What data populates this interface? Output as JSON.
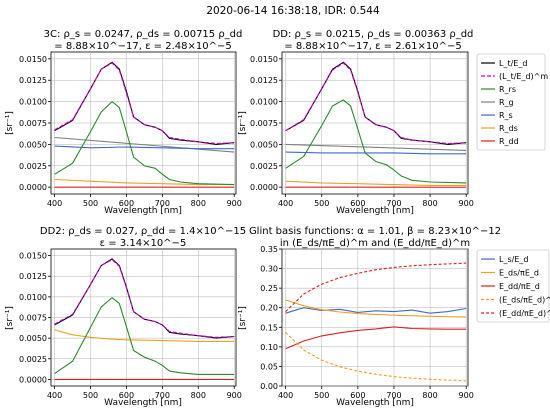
{
  "suptitle": "2020-06-14 16:38:18,  IDR: 0.544",
  "legend_top": [
    "L_t/E_d",
    "(L_t/E_d)^m",
    "R_rs",
    "R_g",
    "R_s",
    "R_ds",
    "R_dd"
  ],
  "legend_bottom": [
    "L_s/E_d",
    "E_ds/πE_d",
    "E_dd/πE_d",
    "(E_ds/πE_d)^m",
    "(E_dd/πE_d)^m"
  ],
  "colors": {
    "lt": "#000000",
    "ltm": "#cc00cc",
    "rrs": "#2a8a2a",
    "rg": "#7f7f7f",
    "rs": "#4169c8",
    "rds": "#f0a020",
    "rdd": "#e02020",
    "ls": "#4169c8",
    "eds": "#f0a020",
    "edd": "#e02020"
  },
  "chart_data": [
    {
      "type": "line",
      "title_lines": [
        "3C: ρ_s = 0.0247, ρ_ds = 0.00715 ρ_dd",
        "= 8.88×10^−17, ε = 2.48×10^−5"
      ],
      "xlabel": "Wavelength [nm]",
      "ylabel": "[sr⁻¹]",
      "xlim": [
        390,
        905
      ],
      "ylim": [
        -0.0008,
        0.0158
      ],
      "xticks": [
        400,
        500,
        600,
        700,
        800,
        900
      ],
      "yticks": [
        0.0,
        0.0025,
        0.005,
        0.0075,
        0.01,
        0.0125,
        0.015
      ],
      "ytick_labels": [
        "0.0000",
        "0.0025",
        "0.0050",
        "0.0075",
        "0.0100",
        "0.0125",
        "0.0150"
      ],
      "series": [
        {
          "key": "rg",
          "x": [
            400,
            900
          ],
          "y": [
            0.0058,
            0.0041
          ]
        },
        {
          "key": "rs",
          "x": [
            400,
            500,
            600,
            700,
            800,
            900
          ],
          "y": [
            0.0048,
            0.0046,
            0.0047,
            0.0046,
            0.0045,
            0.0045
          ]
        },
        {
          "key": "rds",
          "x": [
            400,
            500,
            600,
            700,
            800,
            900
          ],
          "y": [
            0.0009,
            0.0007,
            0.0005,
            0.0004,
            0.0003,
            0.0003
          ]
        },
        {
          "key": "rdd",
          "x": [
            400,
            900
          ],
          "y": [
            0.0,
            0.0
          ]
        },
        {
          "key": "rrs",
          "x": [
            400,
            450,
            500,
            530,
            560,
            580,
            600,
            620,
            650,
            680,
            700,
            720,
            750,
            800,
            900
          ],
          "y": [
            0.0015,
            0.0028,
            0.0065,
            0.0088,
            0.01,
            0.0093,
            0.0065,
            0.0035,
            0.0025,
            0.0022,
            0.0015,
            0.0009,
            0.0006,
            0.0004,
            0.0003
          ]
        },
        {
          "key": "lt",
          "x": [
            400,
            450,
            500,
            530,
            560,
            580,
            600,
            620,
            650,
            680,
            700,
            720,
            750,
            800,
            850,
            900
          ],
          "y": [
            0.0066,
            0.0078,
            0.0115,
            0.0138,
            0.0146,
            0.0138,
            0.0112,
            0.0082,
            0.0073,
            0.007,
            0.0066,
            0.0057,
            0.0055,
            0.0053,
            0.005,
            0.0052
          ]
        },
        {
          "key": "ltm",
          "x": [
            400,
            450,
            500,
            530,
            560,
            580,
            600,
            620,
            650,
            680,
            700,
            720,
            750,
            800,
            850,
            900
          ],
          "y": [
            0.0067,
            0.0079,
            0.0115,
            0.0138,
            0.0145,
            0.0137,
            0.011,
            0.0082,
            0.0073,
            0.007,
            0.0066,
            0.0058,
            0.0056,
            0.0053,
            0.0051,
            0.0052
          ]
        }
      ]
    },
    {
      "type": "line",
      "title_lines": [
        "DD: ρ_s = 0.0215, ρ_ds = 0.00363 ρ_dd",
        "= 8.88×10^−17, ε = 2.61×10^−5"
      ],
      "xlabel": "Wavelength [nm]",
      "ylabel": "[sr⁻¹]",
      "xlim": [
        390,
        905
      ],
      "ylim": [
        -0.0008,
        0.0158
      ],
      "xticks": [
        400,
        500,
        600,
        700,
        800,
        900
      ],
      "yticks": [
        0.0,
        0.0025,
        0.005,
        0.0075,
        0.01,
        0.0125,
        0.015
      ],
      "ytick_labels": [
        "0.0000",
        "0.0025",
        "0.0050",
        "0.0075",
        "0.0100",
        "0.0125",
        "0.0150"
      ],
      "series": [
        {
          "key": "rg",
          "x": [
            400,
            900
          ],
          "y": [
            0.005,
            0.0043
          ]
        },
        {
          "key": "rs",
          "x": [
            400,
            500,
            600,
            700,
            800,
            900
          ],
          "y": [
            0.0041,
            0.004,
            0.004,
            0.004,
            0.0039,
            0.0039
          ]
        },
        {
          "key": "rds",
          "x": [
            400,
            500,
            600,
            700,
            800,
            900
          ],
          "y": [
            0.0007,
            0.0005,
            0.0004,
            0.0003,
            0.0002,
            0.0002
          ]
        },
        {
          "key": "rdd",
          "x": [
            400,
            900
          ],
          "y": [
            0.0,
            0.0
          ]
        },
        {
          "key": "rrs",
          "x": [
            400,
            450,
            500,
            530,
            560,
            580,
            600,
            620,
            650,
            680,
            700,
            720,
            750,
            800,
            900
          ],
          "y": [
            0.0022,
            0.0036,
            0.0072,
            0.0095,
            0.0102,
            0.0095,
            0.0068,
            0.004,
            0.003,
            0.0026,
            0.002,
            0.0013,
            0.0008,
            0.0006,
            0.0005
          ]
        },
        {
          "key": "lt",
          "x": [
            400,
            450,
            500,
            530,
            560,
            580,
            600,
            620,
            650,
            680,
            700,
            720,
            750,
            800,
            850,
            900
          ],
          "y": [
            0.0066,
            0.0078,
            0.0115,
            0.0138,
            0.0146,
            0.0138,
            0.0112,
            0.0082,
            0.0073,
            0.007,
            0.0066,
            0.0057,
            0.0055,
            0.0053,
            0.005,
            0.0052
          ]
        },
        {
          "key": "ltm",
          "x": [
            400,
            450,
            500,
            530,
            560,
            580,
            600,
            620,
            650,
            680,
            700,
            720,
            750,
            800,
            850,
            900
          ],
          "y": [
            0.0066,
            0.0079,
            0.0115,
            0.0137,
            0.0145,
            0.0137,
            0.0111,
            0.0082,
            0.0073,
            0.007,
            0.0066,
            0.0058,
            0.0055,
            0.0053,
            0.0051,
            0.0052
          ]
        }
      ]
    },
    {
      "type": "line",
      "title_lines": [
        "DD2: ρ_ds = 0.027, ρ_dd = 1.4×10^−15",
        "ε = 3.14×10^−5"
      ],
      "xlabel": "Wavelength [nm]",
      "ylabel": "[sr⁻¹]",
      "xlim": [
        390,
        905
      ],
      "ylim": [
        -0.0008,
        0.0158
      ],
      "xticks": [
        400,
        500,
        600,
        700,
        800,
        900
      ],
      "yticks": [
        0.0,
        0.0025,
        0.005,
        0.0075,
        0.01,
        0.0125,
        0.015
      ],
      "ytick_labels": [
        "0.0000",
        "0.0025",
        "0.0050",
        "0.0075",
        "0.0100",
        "0.0125",
        "0.0150"
      ],
      "series": [
        {
          "key": "rds",
          "x": [
            400,
            450,
            500,
            550,
            600,
            700,
            800,
            900
          ],
          "y": [
            0.006,
            0.0054,
            0.0051,
            0.0049,
            0.0048,
            0.0047,
            0.0046,
            0.0046
          ]
        },
        {
          "key": "rdd",
          "x": [
            400,
            900
          ],
          "y": [
            0.0,
            0.0
          ]
        },
        {
          "key": "rrs",
          "x": [
            400,
            450,
            500,
            530,
            560,
            580,
            600,
            620,
            650,
            680,
            700,
            720,
            750,
            800,
            900
          ],
          "y": [
            0.0007,
            0.0022,
            0.0063,
            0.0088,
            0.0099,
            0.0092,
            0.0064,
            0.0035,
            0.0027,
            0.0022,
            0.0017,
            0.001,
            0.0008,
            0.0006,
            0.0006
          ]
        },
        {
          "key": "lt",
          "x": [
            400,
            450,
            500,
            530,
            560,
            580,
            600,
            620,
            650,
            680,
            700,
            720,
            750,
            800,
            850,
            900
          ],
          "y": [
            0.0066,
            0.0078,
            0.0115,
            0.0138,
            0.0146,
            0.0138,
            0.0112,
            0.0082,
            0.0073,
            0.007,
            0.0066,
            0.0057,
            0.0055,
            0.0053,
            0.005,
            0.0052
          ]
        },
        {
          "key": "ltm",
          "x": [
            400,
            450,
            500,
            530,
            560,
            580,
            600,
            620,
            650,
            680,
            700,
            720,
            750,
            800,
            850,
            900
          ],
          "y": [
            0.0067,
            0.0079,
            0.0115,
            0.0138,
            0.0145,
            0.0137,
            0.0111,
            0.0082,
            0.0073,
            0.007,
            0.0066,
            0.0058,
            0.0056,
            0.0053,
            0.0051,
            0.0052
          ]
        }
      ]
    },
    {
      "type": "line",
      "title_lines": [
        "Glint basis functions: α = 1.01, β = 8.23×10^−12",
        "in (E_ds/πE_d)^m and (E_dd/πE_d)^m"
      ],
      "xlabel": "Wavelength [nm]",
      "ylabel": "[sr⁻¹]",
      "xlim": [
        390,
        905
      ],
      "ylim": [
        0.0,
        0.35
      ],
      "xticks": [
        400,
        500,
        600,
        700,
        800,
        900
      ],
      "yticks": [
        0.0,
        0.05,
        0.1,
        0.15,
        0.2,
        0.25,
        0.3,
        0.35
      ],
      "ytick_labels": [
        "0.00",
        "0.05",
        "0.10",
        "0.15",
        "0.20",
        "0.25",
        "0.30",
        "0.35"
      ],
      "series": [
        {
          "key": "ls",
          "x": [
            400,
            450,
            500,
            550,
            600,
            650,
            700,
            750,
            800,
            850,
            900
          ],
          "y": [
            0.186,
            0.2,
            0.193,
            0.196,
            0.188,
            0.192,
            0.19,
            0.194,
            0.186,
            0.19,
            0.198
          ]
        },
        {
          "key": "eds",
          "x": [
            400,
            450,
            500,
            550,
            600,
            700,
            800,
            900
          ],
          "y": [
            0.22,
            0.205,
            0.195,
            0.189,
            0.185,
            0.181,
            0.178,
            0.176
          ]
        },
        {
          "key": "edd",
          "x": [
            400,
            450,
            500,
            550,
            600,
            650,
            700,
            750,
            800,
            850,
            900
          ],
          "y": [
            0.095,
            0.115,
            0.128,
            0.136,
            0.142,
            0.146,
            0.151,
            0.147,
            0.146,
            0.145,
            0.145
          ]
        },
        {
          "key": "edsm",
          "x": [
            400,
            450,
            500,
            550,
            600,
            650,
            700,
            750,
            800,
            850,
            900
          ],
          "y": [
            0.137,
            0.092,
            0.066,
            0.049,
            0.038,
            0.03,
            0.024,
            0.02,
            0.017,
            0.015,
            0.013
          ]
        },
        {
          "key": "eddm",
          "x": [
            400,
            450,
            500,
            550,
            600,
            650,
            700,
            750,
            800,
            850,
            900
          ],
          "y": [
            0.19,
            0.235,
            0.26,
            0.277,
            0.288,
            0.297,
            0.303,
            0.307,
            0.31,
            0.312,
            0.314
          ]
        }
      ]
    }
  ]
}
